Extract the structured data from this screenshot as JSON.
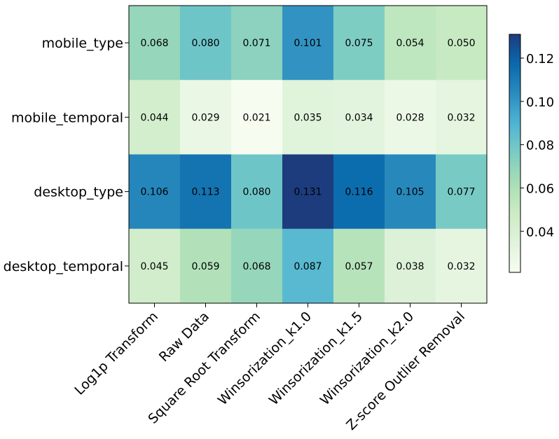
{
  "chart_data": {
    "type": "heatmap",
    "title": "",
    "xlabel": "",
    "ylabel": "",
    "rows": [
      "mobile_type",
      "mobile_temporal",
      "desktop_type",
      "desktop_temporal"
    ],
    "columns": [
      "Log1p Transform",
      "Raw Data",
      "Square Root Transform",
      "Winsorization_k1.0",
      "Winsorization_k1.5",
      "Winsorization_k2.0",
      "Z-score Outlier Removal"
    ],
    "values": [
      [
        0.068,
        0.08,
        0.071,
        0.101,
        0.075,
        0.054,
        0.05
      ],
      [
        0.044,
        0.029,
        0.021,
        0.035,
        0.034,
        0.028,
        0.032
      ],
      [
        0.106,
        0.113,
        0.08,
        0.131,
        0.116,
        0.105,
        0.077
      ],
      [
        0.045,
        0.059,
        0.068,
        0.087,
        0.057,
        0.038,
        0.032
      ]
    ],
    "cell_labels": [
      [
        "0.068",
        "0.080",
        "0.071",
        "0.101",
        "0.075",
        "0.054",
        "0.050"
      ],
      [
        "0.044",
        "0.029",
        "0.021",
        "0.035",
        "0.034",
        "0.028",
        "0.032"
      ],
      [
        "0.106",
        "0.113",
        "0.080",
        "0.131",
        "0.116",
        "0.105",
        "0.077"
      ],
      [
        "0.045",
        "0.059",
        "0.068",
        "0.087",
        "0.057",
        "0.038",
        "0.032"
      ]
    ],
    "colormap": "GnBu",
    "colorbar": {
      "range": [
        0.021,
        0.131
      ],
      "ticks": [
        0.04,
        0.06,
        0.08,
        0.1,
        0.12
      ],
      "tick_labels": [
        "0.04",
        "0.06",
        "0.08",
        "0.10",
        "0.12"
      ],
      "position": "right"
    },
    "grid": false,
    "legend": "none"
  }
}
